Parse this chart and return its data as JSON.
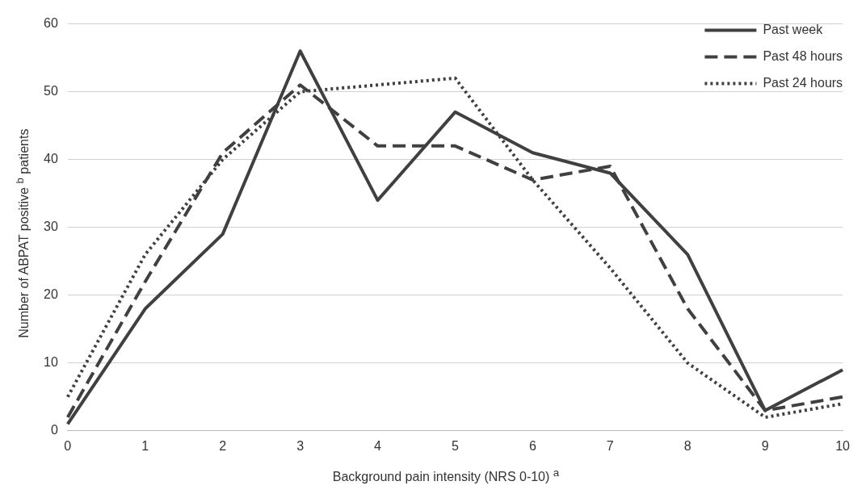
{
  "chart_data": {
    "type": "line",
    "xlabel": "Background pain intensity (NRS 0-10) $^{a}$",
    "ylabel": "Number of ABPAT positive $^{b}$ patients",
    "categories": [
      "0",
      "1",
      "2",
      "3",
      "4",
      "5",
      "6",
      "7",
      "8",
      "9",
      "10"
    ],
    "series": [
      {
        "name": "Past week",
        "color": "#404040",
        "line_style": "solid",
        "values": [
          1,
          18,
          29,
          56,
          34,
          47,
          41,
          38,
          26,
          3,
          9
        ]
      },
      {
        "name": "Past 48 hours",
        "color": "#404040",
        "line_style": "dashed",
        "values": [
          2,
          22,
          41,
          51,
          42,
          42,
          37,
          39,
          18,
          3,
          5
        ]
      },
      {
        "name": "Past 24 hours",
        "color": "#404040",
        "line_style": "dotted",
        "values": [
          5,
          26,
          40,
          50,
          51,
          52,
          37,
          24,
          10,
          2,
          4
        ]
      }
    ],
    "ylim": [
      0,
      60
    ],
    "yticks": [
      0,
      10,
      20,
      30,
      40,
      50,
      60
    ],
    "grid": "y",
    "legend": "top right",
    "marker": "none"
  }
}
